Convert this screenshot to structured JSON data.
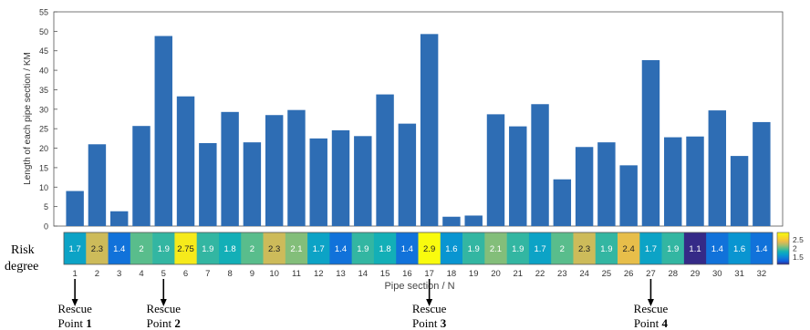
{
  "chart_data": {
    "type": "bar",
    "title": "",
    "xlabel": "Pipe section / N",
    "ylabel": "Length of each pipe section / KM",
    "ylim": [
      0,
      55
    ],
    "yticks": [
      0,
      5,
      10,
      15,
      20,
      25,
      30,
      35,
      40,
      45,
      50,
      55
    ],
    "grid": false,
    "categories": [
      "1",
      "2",
      "3",
      "4",
      "5",
      "6",
      "7",
      "8",
      "9",
      "10",
      "11",
      "12",
      "13",
      "14",
      "15",
      "16",
      "17",
      "18",
      "19",
      "20",
      "21",
      "22",
      "23",
      "24",
      "25",
      "26",
      "27",
      "28",
      "29",
      "30",
      "31",
      "32"
    ],
    "values": [
      9,
      21,
      3.8,
      25.7,
      48.8,
      33.3,
      21.3,
      29.3,
      21.5,
      28.5,
      29.8,
      22.5,
      24.6,
      23.1,
      33.8,
      26.3,
      49.3,
      2.4,
      2.7,
      28.7,
      25.6,
      31.3,
      12,
      20.3,
      21.5,
      15.6,
      42.6,
      22.8,
      23,
      29.7,
      18,
      26.7
    ],
    "bar_color": "#2e6db4",
    "heatmap": {
      "row_label": "Risk degree",
      "value_labels": [
        "1.7",
        "2.3",
        "1.4",
        "2",
        "1.9",
        "2.75",
        "1.9",
        "1.8",
        "2",
        "2.3",
        "2.1",
        "1.7",
        "1.4",
        "1.9",
        "1.8",
        "1.4",
        "2.9",
        "1.6",
        "1.9",
        "2.1",
        "1.9",
        "1.7",
        "2",
        "2.3",
        "1.9",
        "2.4",
        "1.7",
        "1.9",
        "1.1",
        "1.4",
        "1.6",
        "1.4"
      ],
      "colormap": "parula",
      "clim": [
        1.1,
        2.9
      ]
    },
    "colorbar": {
      "ticks": [
        "2.5",
        "2",
        "1.5"
      ],
      "tick_values": [
        2.5,
        2.0,
        1.5
      ]
    },
    "annotations": [
      {
        "label_top": "Rescue",
        "label_bottom": "Point",
        "number": "1",
        "section": 1
      },
      {
        "label_top": "Rescue",
        "label_bottom": "Point",
        "number": "2",
        "section": 5
      },
      {
        "label_top": "Rescue",
        "label_bottom": "Point",
        "number": "3",
        "section": 17
      },
      {
        "label_top": "Rescue",
        "label_bottom": "Point",
        "number": "4",
        "section": 27
      }
    ]
  }
}
